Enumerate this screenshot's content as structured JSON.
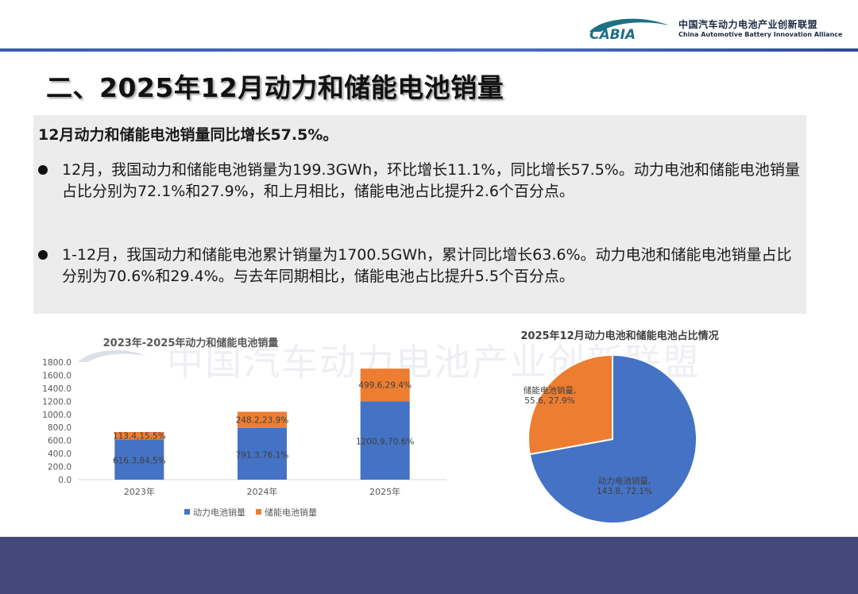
{
  "header": {
    "org_name_cn": "中国汽车动力电池产业创新联盟",
    "org_name_en": "China Automotive Battery Innovation Alliance",
    "logo_text": "CABIA",
    "brand_color": "#1d6f86",
    "rule_color": "#3b5cb0"
  },
  "page": {
    "title": "二、2025年12月动力和储能电池销量",
    "headline": "12月动力和储能电池销量同比增长57.5%。",
    "bullets": [
      "12月，我国动力和储能电池销量为199.3GWh，环比增长11.1%，同比增长57.5%。动力电池和储能电池销量占比分别为72.1%和27.9%，和上月相比，储能电池占比提升2.6个百分点。",
      "1-12月，我国动力和储能电池累计销量为1700.5GWh，累计同比增长63.6%。动力电池和储能电池销量占比分别为70.6%和29.4%。与去年同期相比，储能电池占比提升5.5个百分点。"
    ],
    "watermark": "中国汽车动力电池产业创新联盟",
    "footer_color": "#44497c"
  },
  "chart_data": [
    {
      "type": "bar",
      "stacked": true,
      "title": "2023年-2025年动力和储能电池销量",
      "categories": [
        "2023年",
        "2024年",
        "2025年"
      ],
      "series": [
        {
          "name": "动力电池销量",
          "values": [
            616.3,
            791.3,
            1200.9
          ],
          "labels": [
            "616.3,84.5%",
            "791.3,76.1%",
            "1200.9,70.6%"
          ],
          "color": "#4472c4"
        },
        {
          "name": "储能电池销量",
          "values": [
            113.4,
            248.2,
            499.6
          ],
          "labels": [
            "113.4,15.5%",
            "248.2,23.9%",
            "499.6,29.4%"
          ],
          "color": "#ed7d31"
        }
      ],
      "ylim": [
        0,
        1800
      ],
      "yticks": [
        "0.0",
        "200.0",
        "400.0",
        "600.0",
        "800.0",
        "1000.0",
        "1200.0",
        "1400.0",
        "1600.0",
        "1800.0"
      ],
      "grid": false,
      "legend": "bottom"
    },
    {
      "type": "pie",
      "title": "2025年12月动力电池和储能电池占比情况",
      "slices": [
        {
          "name": "动力电池销量",
          "value": 143.8,
          "percent": 72.1,
          "label_line1": "动力电池销量,",
          "label_line2": "143.8, 72.1%",
          "color": "#4472c4"
        },
        {
          "name": "储能电池销量",
          "value": 55.6,
          "percent": 27.9,
          "label_line1": "储能电池销量,",
          "label_line2": "55.6, 27.9%",
          "color": "#ed7d31"
        }
      ]
    }
  ]
}
